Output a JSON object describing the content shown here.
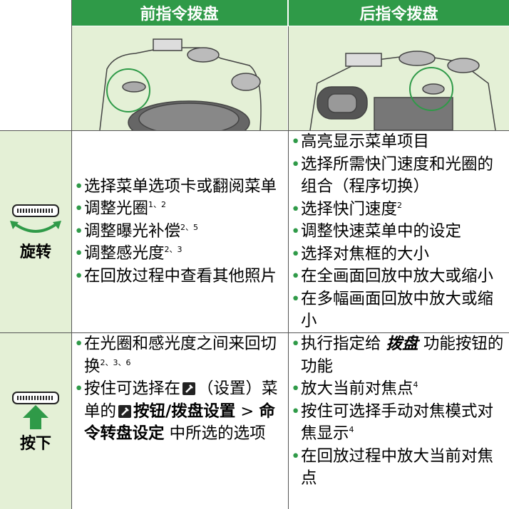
{
  "header": {
    "columns": [
      "前指令拨盘",
      "后指令拨盘"
    ]
  },
  "rows": [
    {
      "label": "旋转",
      "cells": [
        [
          [
            {
              "text": "选择菜单选项卡或翻阅菜单"
            }
          ],
          [
            {
              "text": "调整光圈"
            },
            {
              "text": "1、2",
              "kind": "sup"
            }
          ],
          [
            {
              "text": "调整曝光补偿"
            },
            {
              "text": "2、5",
              "kind": "sup"
            }
          ],
          [
            {
              "text": "调整感光度"
            },
            {
              "text": "2、3",
              "kind": "sup"
            }
          ],
          [
            {
              "text": "在回放过程中查看其他照片"
            }
          ]
        ],
        [
          [
            {
              "text": "高亮显示菜单项目"
            }
          ],
          [
            {
              "text": "选择所需快门速度和光圈的组合（程序切换）"
            }
          ],
          [
            {
              "text": "选择快门速度"
            },
            {
              "text": "2",
              "kind": "sup"
            }
          ],
          [
            {
              "text": "调整快速菜单中的设定"
            }
          ],
          [
            {
              "text": "选择对焦框的大小"
            }
          ],
          [
            {
              "text": "在全画面回放中放大或缩小"
            }
          ],
          [
            {
              "text": "在多幅画面回放中放大或缩小"
            }
          ]
        ]
      ]
    },
    {
      "label": "按下",
      "cells": [
        [
          [
            {
              "text": "在光圈和感光度之间来回切换"
            },
            {
              "text": "2、3、6",
              "kind": "sup"
            }
          ],
          [
            {
              "text": "按住可选择在"
            },
            {
              "kind": "icon"
            },
            {
              "text": "（设置）菜单的"
            },
            {
              "kind": "icon"
            },
            {
              "text": "按钮/拨盘设置",
              "kind": "bold"
            },
            {
              "text": " > "
            },
            {
              "text": "命令转盘设定",
              "kind": "bold"
            },
            {
              "text": " 中所选的选项"
            }
          ]
        ],
        [
          [
            {
              "text": "执行指定给 "
            },
            {
              "text": "拨盘",
              "kind": "bold-italic"
            },
            {
              "text": " 功能按钮的功能"
            }
          ],
          [
            {
              "text": "放大当前对焦点"
            },
            {
              "text": "4",
              "kind": "sup"
            }
          ],
          [
            {
              "text": "按住可选择手动对焦模式对焦显示"
            },
            {
              "text": "4",
              "kind": "sup"
            }
          ],
          [
            {
              "text": "在回放过程中放大当前对焦点"
            }
          ]
        ]
      ]
    }
  ]
}
